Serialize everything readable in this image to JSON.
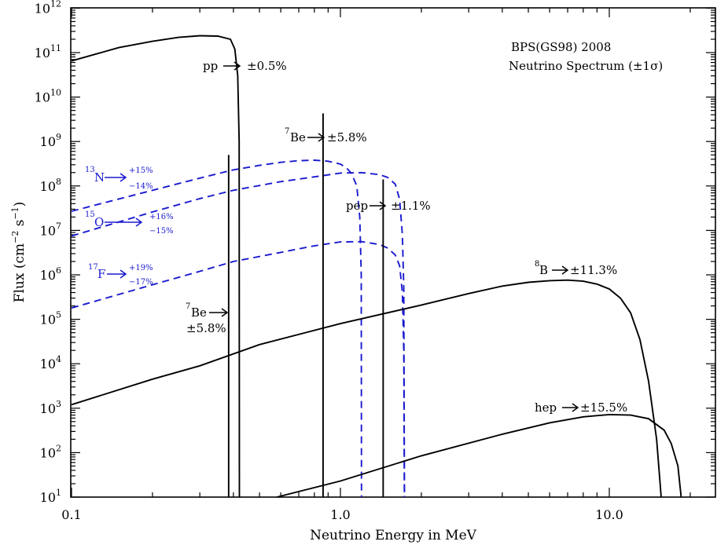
{
  "chart_data": {
    "type": "line",
    "title": "BPS(GS98) 2008",
    "subtitle": "Neutrino Spectrum (±1σ)",
    "xlabel": "Neutrino Energy in MeV",
    "ylabel": "Flux (cm⁻² s⁻¹)",
    "x_scale": "log",
    "y_scale": "log",
    "xlim": [
      0.1,
      25
    ],
    "ylim": [
      10,
      1000000000000.0
    ],
    "x_tick_labels": [
      "0.1",
      "1.0",
      "10.0"
    ],
    "y_tick_labels": [
      {
        "base": "10",
        "exp": "1"
      },
      {
        "base": "10",
        "exp": "2"
      },
      {
        "base": "10",
        "exp": "3"
      },
      {
        "base": "10",
        "exp": "4"
      },
      {
        "base": "10",
        "exp": "5"
      },
      {
        "base": "10",
        "exp": "6"
      },
      {
        "base": "10",
        "exp": "7"
      },
      {
        "base": "10",
        "exp": "8"
      },
      {
        "base": "10",
        "exp": "9"
      },
      {
        "base": "10",
        "exp": "10"
      },
      {
        "base": "10",
        "exp": "11"
      },
      {
        "base": "10",
        "exp": "12"
      }
    ],
    "continuum_series": [
      {
        "label": "pp",
        "style": "solid",
        "color": "#000000",
        "points": [
          [
            0.1,
            65000000000.0
          ],
          [
            0.15,
            130000000000.0
          ],
          [
            0.2,
            180000000000.0
          ],
          [
            0.25,
            220000000000.0
          ],
          [
            0.3,
            240000000000.0
          ],
          [
            0.35,
            235000000000.0
          ],
          [
            0.39,
            200000000000.0
          ],
          [
            0.405,
            120000000000.0
          ],
          [
            0.415,
            30000000000.0
          ],
          [
            0.42,
            1000000000.0
          ],
          [
            0.421,
            10
          ]
        ]
      },
      {
        "label": "13N",
        "style": "dashed",
        "color": "#1a1acf",
        "points": [
          [
            0.1,
            27000000.0
          ],
          [
            0.2,
            80000000.0
          ],
          [
            0.3,
            150000000.0
          ],
          [
            0.4,
            230000000.0
          ],
          [
            0.5,
            290000000.0
          ],
          [
            0.6,
            340000000.0
          ],
          [
            0.7,
            370000000.0
          ],
          [
            0.8,
            380000000.0
          ],
          [
            0.9,
            360000000.0
          ],
          [
            1.0,
            310000000.0
          ],
          [
            1.05,
            260000000.0
          ],
          [
            1.1,
            190000000.0
          ],
          [
            1.15,
            100000000.0
          ],
          [
            1.18,
            20000000.0
          ],
          [
            1.195,
            1000000.0
          ],
          [
            1.198,
            10
          ]
        ]
      },
      {
        "label": "15O",
        "style": "dashed",
        "color": "#1a1acf",
        "points": [
          [
            0.1,
            7500000.0
          ],
          [
            0.2,
            26000000.0
          ],
          [
            0.3,
            52000000.0
          ],
          [
            0.4,
            80000000.0
          ],
          [
            0.6,
            125000000.0
          ],
          [
            0.8,
            160000000.0
          ],
          [
            1.0,
            195000000.0
          ],
          [
            1.2,
            200000000.0
          ],
          [
            1.4,
            180000000.0
          ],
          [
            1.5,
            155000000.0
          ],
          [
            1.6,
            110000000.0
          ],
          [
            1.66,
            50000000.0
          ],
          [
            1.7,
            8000000.0
          ],
          [
            1.72,
            500000.0
          ],
          [
            1.73,
            10
          ]
        ]
      },
      {
        "label": "17F",
        "style": "dashed",
        "color": "#1a1acf",
        "points": [
          [
            0.1,
            180000.0
          ],
          [
            0.2,
            600000.0
          ],
          [
            0.3,
            1200000.0
          ],
          [
            0.4,
            2000000.0
          ],
          [
            0.6,
            3200000.0
          ],
          [
            0.8,
            4500000.0
          ],
          [
            1.0,
            5500000.0
          ],
          [
            1.2,
            5600000.0
          ],
          [
            1.4,
            4800000.0
          ],
          [
            1.5,
            4000000.0
          ],
          [
            1.6,
            2800000.0
          ],
          [
            1.66,
            1600000.0
          ],
          [
            1.7,
            400000.0
          ],
          [
            1.72,
            20000.0
          ],
          [
            1.73,
            10
          ]
        ]
      },
      {
        "label": "8B",
        "style": "solid",
        "color": "#000000",
        "points": [
          [
            0.1,
            1200.0
          ],
          [
            0.2,
            4500.0
          ],
          [
            0.3,
            9000.0
          ],
          [
            0.5,
            27000.0
          ],
          [
            1.0,
            80000.0
          ],
          [
            2.0,
            210000.0
          ],
          [
            3.0,
            380000.0
          ],
          [
            4.0,
            560000.0
          ],
          [
            5.0,
            680000.0
          ],
          [
            6.0,
            740000.0
          ],
          [
            7.0,
            760000.0
          ],
          [
            8.0,
            720000.0
          ],
          [
            9.0,
            620000.0
          ],
          [
            10.0,
            480000.0
          ],
          [
            11.0,
            300000.0
          ],
          [
            12.0,
            140000.0
          ],
          [
            13.0,
            35000.0
          ],
          [
            14.0,
            4000.0
          ],
          [
            15.0,
            200.0
          ],
          [
            15.6,
            10
          ]
        ]
      },
      {
        "label": "hep",
        "style": "solid",
        "color": "#000000",
        "points": [
          [
            0.58,
            10
          ],
          [
            1.0,
            23
          ],
          [
            2.0,
            85
          ],
          [
            4.0,
            260
          ],
          [
            6.0,
            470
          ],
          [
            8.0,
            640
          ],
          [
            10.0,
            720
          ],
          [
            12.0,
            700
          ],
          [
            14.0,
            580
          ],
          [
            16.0,
            320
          ],
          [
            17.0,
            160
          ],
          [
            18.0,
            50
          ],
          [
            18.5,
            10
          ]
        ]
      }
    ],
    "line_sources": [
      {
        "label": "7Be (0.384 MeV)",
        "energy": 0.384,
        "flux": 500000000.0
      },
      {
        "label": "7Be (0.862 MeV)",
        "energy": 0.862,
        "flux": 4300000000.0
      },
      {
        "label": "pep",
        "energy": 1.442,
        "flux": 140000000.0
      }
    ]
  },
  "annotations": {
    "title_line1": "BPS(GS98) 2008",
    "title_line2": "Neutrino Spectrum (±1σ)",
    "pp": {
      "name": "pp",
      "unc": "±0.5%"
    },
    "be7_high": {
      "sup": "7",
      "name": "Be",
      "unc": "±5.8%"
    },
    "be7_low": {
      "sup": "7",
      "name": "Be",
      "unc": "±5.8%"
    },
    "pep": {
      "name": "pep",
      "unc": "±1.1%"
    },
    "b8": {
      "sup": "8",
      "name": "B",
      "unc": "±11.3%"
    },
    "hep": {
      "name": "hep",
      "unc": "±15.5%"
    },
    "n13": {
      "sup": "13",
      "name": "N",
      "plus": "+15%",
      "minus": "−14%"
    },
    "o15": {
      "sup": "15",
      "name": "O",
      "plus": "+16%",
      "minus": "−15%"
    },
    "f17": {
      "sup": "17",
      "name": "F",
      "plus": "+19%",
      "minus": "−17%"
    }
  },
  "axis_text": {
    "xlabel": "Neutrino Energy in MeV",
    "ylabel_main": "Flux (cm",
    "ylabel_exp1": "−2",
    "ylabel_mid": " s",
    "ylabel_exp2": "−1",
    "ylabel_end": ")"
  }
}
